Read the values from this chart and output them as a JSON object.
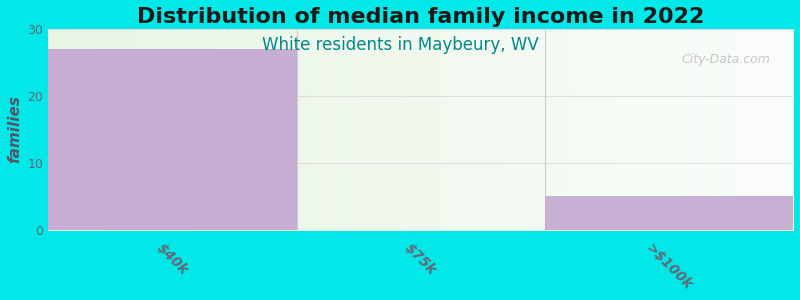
{
  "title": "Distribution of median family income in 2022",
  "subtitle": "White residents in Maybeury, WV",
  "categories": [
    "$40k",
    "$75k",
    ">$100k"
  ],
  "values": [
    27,
    0,
    5
  ],
  "bar_color": "#c3a8d1",
  "background_color": "#00e8e8",
  "ylabel": "families",
  "ylim": [
    0,
    30
  ],
  "yticks": [
    0,
    10,
    20,
    30
  ],
  "title_fontsize": 16,
  "subtitle_fontsize": 12,
  "subtitle_color": "#008b8b",
  "watermark": "City-Data.com",
  "ylabel_color": "#555566",
  "tick_color": "#666677",
  "grid_color": "#e0e0e0"
}
